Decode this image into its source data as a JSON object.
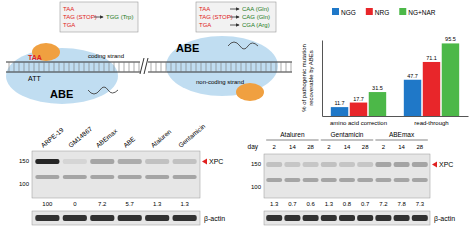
{
  "diagram": {
    "left_box": {
      "from": [
        "TAA",
        "TAG (STOP)",
        "TGA"
      ],
      "to": [
        "TGG (Trp)"
      ]
    },
    "right_box": {
      "from": [
        "TAA",
        "TAG (STOP)",
        "TGA"
      ],
      "to": [
        "CAA (Gln)",
        "CAG (Gln)",
        "CGA (Arg)"
      ]
    },
    "left_dna": {
      "codon": "TAA",
      "anticodon": "ATT",
      "strand": "coding strand",
      "editor": "ABE"
    },
    "right_dna": {
      "strand": "non-coding strand",
      "editor": "ABE"
    }
  },
  "chart_data": {
    "type": "bar",
    "y_label": [
      "% of pathogenic mutation",
      "recoverable by ABEs"
    ],
    "categories": [
      "amino acid correction",
      "read-through"
    ],
    "series": [
      {
        "name": "NGG",
        "color": "#1f78c8",
        "values": [
          11.7,
          47.7
        ]
      },
      {
        "name": "NRG",
        "color": "#e8262a",
        "values": [
          17.7,
          71.1
        ]
      },
      {
        "name": "NG+NAR",
        "color": "#4cb848",
        "values": [
          31.5,
          95.5
        ]
      }
    ],
    "ylim": [
      0,
      100
    ],
    "tick_labels": "x",
    "data_labels": true,
    "legend": "top"
  },
  "blot_left": {
    "lanes": [
      "ARPE-19",
      "GM14867",
      "ABEmax",
      "ABE",
      "Ataluren",
      "Gentamicin"
    ],
    "markers": [
      150,
      100
    ],
    "target": "XPC",
    "quantification": [
      100,
      0,
      7.2,
      5.7,
      1.3,
      1.3
    ],
    "loading": "β-actin"
  },
  "blot_right": {
    "x_label": "day",
    "groups": [
      "Ataluren",
      "Gentamicin",
      "ABEmax"
    ],
    "days": [
      2,
      14,
      28,
      2,
      14,
      28,
      2,
      14,
      28
    ],
    "markers": [
      150,
      100
    ],
    "target": "XPC",
    "quantification": [
      1.3,
      0.7,
      0.6,
      1.3,
      0.8,
      0.7,
      7.2,
      7.8,
      7.3
    ],
    "loading": "β-actin"
  }
}
